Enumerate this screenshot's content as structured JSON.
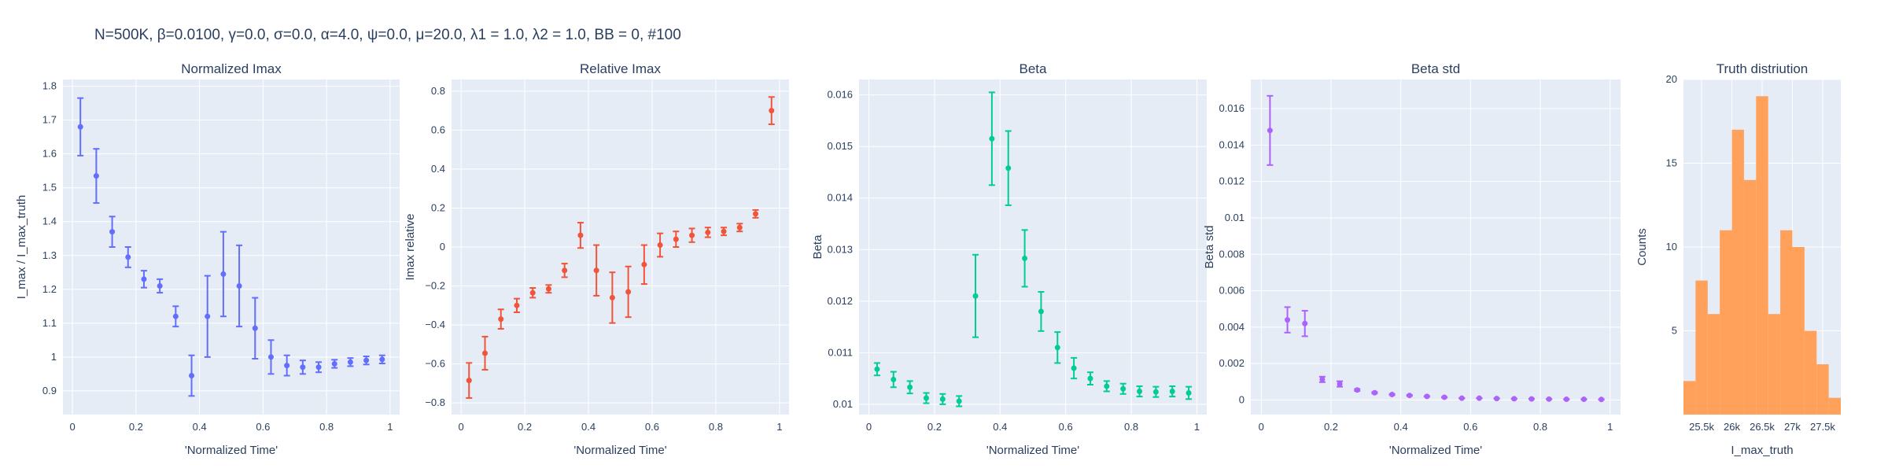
{
  "figure_title": "N=500K, β=0.0100, γ=0.0, σ=0.0,  α=4.0, ψ=0.0, μ=20.0, λ1 = 1.0, λ2 = 1.0, BB = 0, #100",
  "colors": {
    "plot_bg": "#e5ecf6",
    "grid": "#ffffff",
    "text": "#2a3f5f"
  },
  "chart_data": [
    {
      "type": "scatter",
      "title": "Normalized Imax",
      "xlabel": "'Normalized Time'",
      "ylabel": "I_max / I_max_truth",
      "color": "#636efa",
      "xlim": [
        -0.03,
        1.03
      ],
      "ylim": [
        0.83,
        1.82
      ],
      "xticks": [
        0,
        0.2,
        0.4,
        0.6,
        0.8,
        1
      ],
      "xtick_labels": [
        "0",
        "0.2",
        "0.4",
        "0.6",
        "0.8",
        "1"
      ],
      "yticks": [
        0.9,
        1,
        1.1,
        1.2,
        1.3,
        1.4,
        1.5,
        1.6,
        1.7,
        1.8
      ],
      "ytick_labels": [
        "0.9",
        "1",
        "1.1",
        "1.2",
        "1.3",
        "1.4",
        "1.5",
        "1.6",
        "1.7",
        "1.8"
      ],
      "x": [
        0.025,
        0.075,
        0.125,
        0.175,
        0.225,
        0.275,
        0.325,
        0.375,
        0.425,
        0.475,
        0.525,
        0.575,
        0.625,
        0.675,
        0.725,
        0.775,
        0.825,
        0.875,
        0.925,
        0.975
      ],
      "y": [
        1.68,
        1.535,
        1.37,
        1.295,
        1.23,
        1.21,
        1.12,
        0.945,
        1.12,
        1.245,
        1.21,
        1.085,
        1.0,
        0.975,
        0.97,
        0.97,
        0.98,
        0.985,
        0.99,
        0.993
      ],
      "error": [
        0.085,
        0.08,
        0.045,
        0.03,
        0.025,
        0.02,
        0.03,
        0.06,
        0.12,
        0.125,
        0.12,
        0.09,
        0.05,
        0.03,
        0.02,
        0.015,
        0.012,
        0.012,
        0.012,
        0.012
      ]
    },
    {
      "type": "scatter",
      "title": "Relative Imax",
      "xlabel": "'Normalized Time'",
      "ylabel": "Imax relative",
      "color": "#ef553b",
      "xlim": [
        -0.03,
        1.03
      ],
      "ylim": [
        -0.86,
        0.86
      ],
      "xticks": [
        0,
        0.2,
        0.4,
        0.6,
        0.8,
        1
      ],
      "xtick_labels": [
        "0",
        "0.2",
        "0.4",
        "0.6",
        "0.8",
        "1"
      ],
      "yticks": [
        -0.8,
        -0.6,
        -0.4,
        -0.2,
        0,
        0.2,
        0.4,
        0.6,
        0.8
      ],
      "ytick_labels": [
        "−0.8",
        "−0.6",
        "−0.4",
        "−0.2",
        "0",
        "0.2",
        "0.4",
        "0.6",
        "0.8"
      ],
      "x": [
        0.025,
        0.075,
        0.125,
        0.175,
        0.225,
        0.275,
        0.325,
        0.375,
        0.425,
        0.475,
        0.525,
        0.575,
        0.625,
        0.675,
        0.725,
        0.775,
        0.825,
        0.875,
        0.925,
        0.975
      ],
      "y": [
        -0.685,
        -0.545,
        -0.37,
        -0.3,
        -0.235,
        -0.215,
        -0.12,
        0.06,
        -0.12,
        -0.26,
        -0.23,
        -0.09,
        0.01,
        0.04,
        0.06,
        0.075,
        0.08,
        0.1,
        0.17,
        0.7
      ],
      "error": [
        0.09,
        0.085,
        0.05,
        0.035,
        0.025,
        0.02,
        0.035,
        0.065,
        0.13,
        0.13,
        0.13,
        0.1,
        0.06,
        0.04,
        0.035,
        0.025,
        0.02,
        0.02,
        0.02,
        0.07
      ]
    },
    {
      "type": "scatter",
      "title": "Beta",
      "xlabel": "'Normalized Time'",
      "ylabel": "Beta",
      "color": "#00cc96",
      "xlim": [
        -0.03,
        1.03
      ],
      "ylim": [
        0.0098,
        0.0163
      ],
      "xticks": [
        0,
        0.2,
        0.4,
        0.6,
        0.8,
        1
      ],
      "xtick_labels": [
        "0",
        "0.2",
        "0.4",
        "0.6",
        "0.8",
        "1"
      ],
      "yticks": [
        0.01,
        0.011,
        0.012,
        0.013,
        0.014,
        0.015,
        0.016
      ],
      "ytick_labels": [
        "0.01",
        "0.011",
        "0.012",
        "0.013",
        "0.014",
        "0.015",
        "0.016"
      ],
      "x": [
        0.025,
        0.075,
        0.125,
        0.175,
        0.225,
        0.275,
        0.325,
        0.375,
        0.425,
        0.475,
        0.525,
        0.575,
        0.625,
        0.675,
        0.725,
        0.775,
        0.825,
        0.875,
        0.925,
        0.975
      ],
      "y": [
        0.01068,
        0.01048,
        0.01033,
        0.01012,
        0.0101,
        0.01006,
        0.0121,
        0.01515,
        0.01458,
        0.01283,
        0.0118,
        0.0111,
        0.0107,
        0.0105,
        0.01035,
        0.0103,
        0.01025,
        0.01024,
        0.01025,
        0.01022
      ],
      "error": [
        0.00012,
        0.00015,
        0.00012,
        0.0001,
        0.0001,
        0.0001,
        0.0008,
        0.0009,
        0.00072,
        0.00055,
        0.00038,
        0.0003,
        0.0002,
        0.00012,
        0.0001,
        0.0001,
        0.0001,
        0.0001,
        0.0001,
        0.00012
      ]
    },
    {
      "type": "scatter",
      "title": "Beta std",
      "xlabel": "'Normalized Time'",
      "ylabel": "Beta std",
      "color": "#ab63fa",
      "xlim": [
        -0.03,
        1.03
      ],
      "ylim": [
        -0.0008,
        0.0176
      ],
      "xticks": [
        0,
        0.2,
        0.4,
        0.6,
        0.8,
        1
      ],
      "xtick_labels": [
        "0",
        "0.2",
        "0.4",
        "0.6",
        "0.8",
        "1"
      ],
      "yticks": [
        0,
        0.002,
        0.004,
        0.006,
        0.008,
        0.01,
        0.012,
        0.014,
        0.016
      ],
      "ytick_labels": [
        "0",
        "0.002",
        "0.004",
        "0.006",
        "0.008",
        "0.01",
        "0.012",
        "0.014",
        "0.016"
      ],
      "x": [
        0.025,
        0.075,
        0.125,
        0.175,
        0.225,
        0.275,
        0.325,
        0.375,
        0.425,
        0.475,
        0.525,
        0.575,
        0.625,
        0.675,
        0.725,
        0.775,
        0.825,
        0.875,
        0.925,
        0.975
      ],
      "y": [
        0.0148,
        0.0044,
        0.0042,
        0.00113,
        0.00088,
        0.00055,
        0.0004,
        0.0003,
        0.00025,
        0.0002,
        0.00015,
        0.0001,
        0.0001,
        8e-05,
        7e-05,
        6e-05,
        5e-05,
        4e-05,
        4e-05,
        3e-05
      ],
      "error": [
        0.0019,
        0.0007,
        0.0007,
        0.00015,
        0.00015,
        5e-05,
        4e-05,
        3e-05,
        3e-05,
        2e-05,
        2e-05,
        1e-05,
        1e-05,
        1e-05,
        1e-05,
        1e-05,
        1e-05,
        1e-05,
        1e-05,
        1e-05
      ]
    },
    {
      "type": "bar",
      "title": "Truth distriution",
      "xlabel": "I_max_truth",
      "ylabel": "Counts",
      "color": "#ffa15a",
      "xlim": [
        25200,
        27800
      ],
      "ylim": [
        0,
        20
      ],
      "xticks": [
        25500,
        26000,
        26500,
        27000,
        27500
      ],
      "xtick_labels": [
        "25.5k",
        "26k",
        "26.5k",
        "27k",
        "27.5k"
      ],
      "yticks": [
        5,
        10,
        15,
        20
      ],
      "ytick_labels": [
        "5",
        "10",
        "15",
        "20"
      ],
      "bin_edges": [
        25200,
        25400,
        25600,
        25800,
        26000,
        26200,
        26400,
        26600,
        26800,
        27000,
        27200,
        27400,
        27600,
        27800
      ],
      "values": [
        2,
        8,
        6,
        11,
        17,
        14,
        19,
        6,
        11,
        10,
        5,
        3,
        1
      ]
    }
  ]
}
